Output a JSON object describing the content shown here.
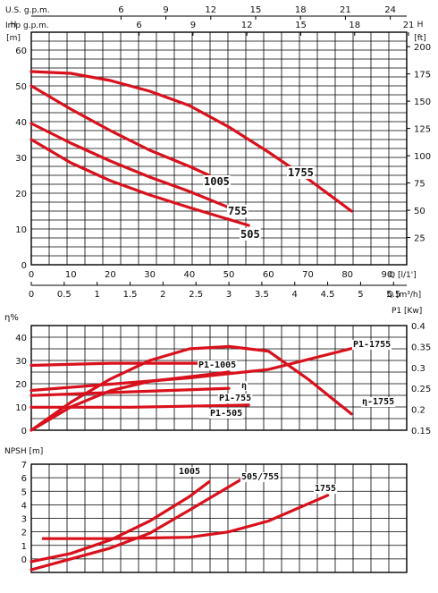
{
  "colors": {
    "curve": "#d9111c",
    "grid": "#000000"
  },
  "top_scales": {
    "us_label": "U.S. g.p.m.",
    "us_ticks": [
      "6",
      "9",
      "12",
      "15",
      "18",
      "21",
      "24"
    ],
    "us_values": [
      6,
      9,
      12,
      15,
      18,
      21,
      24
    ],
    "imp_label": "Imp g.p.m.",
    "imp_ticks": [
      "6",
      "9",
      "12",
      "15",
      "18",
      "21"
    ],
    "imp_values": [
      6,
      9,
      12,
      15,
      18,
      21
    ],
    "h_left_label": "H",
    "h_left_unit": "[m]",
    "h_right_label": "H",
    "h_right_unit": "[ft]"
  },
  "bottom_scales": {
    "q_l_label": "Q [l/1']",
    "q_m3_label": "Q [m³/h]",
    "q_m3_ticks": [
      "0",
      "0.5",
      "1",
      "1.5",
      "2",
      "2.5",
      "3",
      "3.5",
      "4",
      "4.5",
      "5",
      "5.5"
    ],
    "q_m3_values": [
      0,
      0.5,
      1,
      1.5,
      2,
      2.5,
      3,
      3.5,
      4,
      4.5,
      5,
      5.5
    ]
  },
  "chart_data": [
    {
      "type": "line",
      "title": "",
      "xlabel": "Q [l/1']",
      "ylabel": "H [m]",
      "y2label": "H [ft]",
      "xlim": [
        0,
        95
      ],
      "ylim": [
        0,
        65
      ],
      "x_ticks": [
        "0",
        "10",
        "20",
        "30",
        "40",
        "50",
        "60",
        "70",
        "80",
        "90"
      ],
      "y_ticks": [
        "0",
        "10",
        "20",
        "30",
        "40",
        "50",
        "60"
      ],
      "y2_ticks": [
        "25",
        "50",
        "75",
        "100",
        "125",
        "150",
        "175",
        "200"
      ],
      "y2_values": [
        25,
        50,
        75,
        100,
        125,
        150,
        175,
        200
      ],
      "grid": true,
      "series": [
        {
          "name": "1755",
          "x": [
            0,
            10,
            20,
            30,
            40,
            50,
            60,
            70,
            81
          ],
          "y": [
            54,
            53.5,
            51.5,
            48.5,
            44.5,
            38.5,
            31.5,
            24,
            15
          ]
        },
        {
          "name": "1005",
          "x": [
            0,
            10,
            20,
            30,
            40,
            45
          ],
          "y": [
            50,
            43.5,
            37.5,
            32,
            27.5,
            25
          ]
        },
        {
          "name": "755",
          "x": [
            0,
            10,
            20,
            30,
            40,
            50
          ],
          "y": [
            39.5,
            34,
            29,
            24.5,
            20.5,
            16
          ]
        },
        {
          "name": "505",
          "x": [
            0,
            10,
            20,
            30,
            40,
            55
          ],
          "y": [
            35,
            28.5,
            23.5,
            19.5,
            16,
            11
          ]
        }
      ]
    },
    {
      "type": "line",
      "title": "",
      "ylabel": "η%",
      "y2label": "P1 [Kw]",
      "xlim": [
        0,
        95
      ],
      "ylim": [
        0,
        45
      ],
      "y2lim": [
        0.15,
        0.4
      ],
      "y_ticks": [
        "0",
        "10",
        "20",
        "30",
        "40"
      ],
      "y2_ticks": [
        "0.15",
        "0.2",
        "0.25",
        "0.3",
        "0.35",
        "0.4"
      ],
      "grid": true,
      "series": [
        {
          "name": "η-1755",
          "axis": "left",
          "x": [
            0,
            10,
            20,
            30,
            40,
            50,
            60,
            70,
            81
          ],
          "y": [
            0,
            12,
            22,
            30,
            35,
            36,
            34,
            22,
            7
          ]
        },
        {
          "name": "η",
          "axis": "left",
          "x": [
            0,
            10,
            20,
            30,
            40,
            50
          ],
          "y": [
            0,
            10,
            17,
            21,
            23,
            25
          ]
        },
        {
          "name": "P1-1755",
          "axis": "right",
          "x": [
            0,
            20,
            40,
            60,
            81
          ],
          "y": [
            0.245,
            0.26,
            0.275,
            0.295,
            0.345
          ]
        },
        {
          "name": "P1-1005",
          "axis": "right",
          "x": [
            0,
            20,
            45
          ],
          "y": [
            0.305,
            0.31,
            0.31
          ]
        },
        {
          "name": "P1-755",
          "axis": "right",
          "x": [
            0,
            20,
            50
          ],
          "y": [
            0.233,
            0.24,
            0.25
          ]
        },
        {
          "name": "P1-505",
          "axis": "right",
          "x": [
            0,
            25,
            55
          ],
          "y": [
            0.205,
            0.205,
            0.21
          ]
        }
      ]
    },
    {
      "type": "line",
      "title": "",
      "ylabel": "NPSH [m]",
      "xlim": [
        0,
        95
      ],
      "ylim": [
        -1,
        7
      ],
      "y_ticks": [
        "0",
        "1",
        "2",
        "3",
        "4",
        "5",
        "6",
        "7"
      ],
      "grid": true,
      "series": [
        {
          "name": "1005",
          "x": [
            0,
            10,
            20,
            30,
            40,
            45
          ],
          "y": [
            -0.2,
            0.4,
            1.4,
            2.8,
            4.6,
            5.7
          ]
        },
        {
          "name": "505/755",
          "x": [
            0,
            10,
            20,
            30,
            40,
            55
          ],
          "y": [
            -0.8,
            0,
            0.8,
            1.9,
            3.6,
            6.2
          ]
        },
        {
          "name": "1755",
          "x": [
            3,
            20,
            40,
            50,
            60,
            75
          ],
          "y": [
            1.5,
            1.5,
            1.6,
            2,
            2.8,
            4.7
          ]
        }
      ]
    }
  ]
}
